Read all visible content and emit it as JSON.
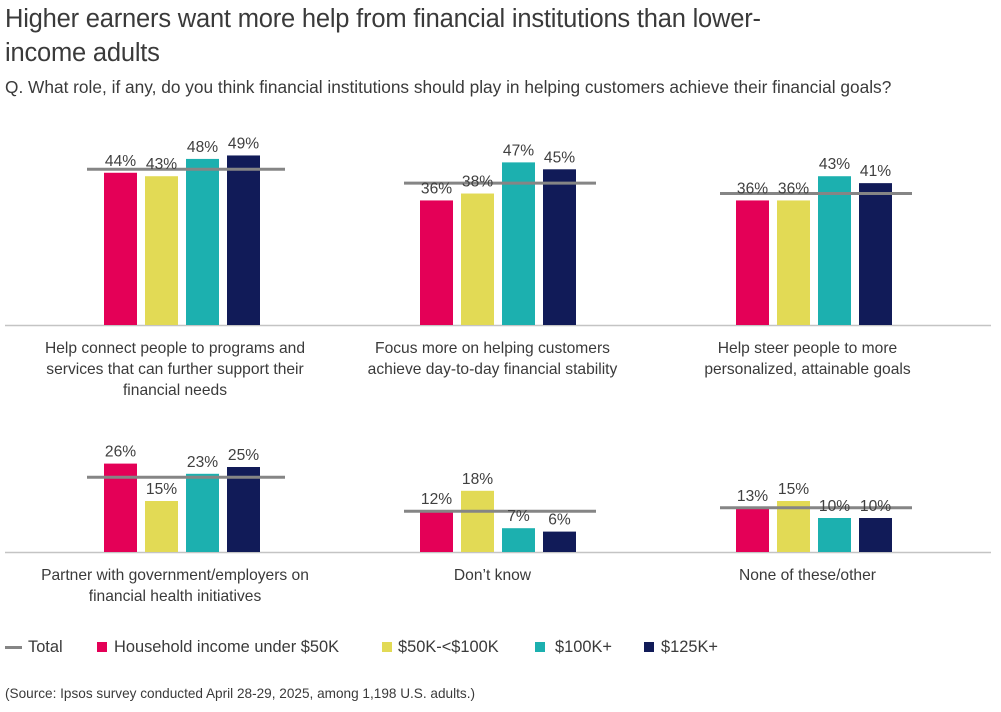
{
  "header": {
    "title": "Higher earners want more help from financial institutions than lower-income adults",
    "title_line1": "Higher earners want more help from financial institutions than lower-",
    "title_line2": "income adults",
    "subtitle": "Q. What role, if any, do you think financial institutions should play in helping customers achieve their financial goals?"
  },
  "legend": {
    "total": "Total",
    "items": [
      {
        "label": "Household income under $50K",
        "color": "#E40057"
      },
      {
        "label": "$50K-<$100K",
        "color": "#E2DA55"
      },
      {
        "label": "$100K+",
        "color": "#1CB0AF"
      },
      {
        "label": "$125K+",
        "color": "#111B58"
      }
    ],
    "total_color": "#858585"
  },
  "source": "(Source: Ipsos survey conducted April 28-29, 2025, among 1,198 U.S. adults.)",
  "chart_data": {
    "type": "bar",
    "title": "Higher earners want more help from financial institutions than lower-income adults",
    "subtitle": "Q. What role, if any, do you think financial institutions should play in helping customers achieve their financial goals?",
    "xlabel": "",
    "ylabel": "",
    "ylim": [
      0,
      55
    ],
    "grid": false,
    "legend_position": "bottom",
    "value_format": "percent",
    "series_names": [
      "Household income under $50K",
      "$50K-<$100K",
      "$100K+",
      "$125K+"
    ],
    "series_colors": [
      "#E40057",
      "#E2DA55",
      "#1CB0AF",
      "#111B58"
    ],
    "total_name": "Total",
    "panels": [
      {
        "category": "Help connect people to programs and services that can further support their financial needs",
        "category_lines": [
          "Help connect people to programs and",
          "services that can further support their",
          "financial needs"
        ],
        "values": [
          44,
          43,
          48,
          49
        ],
        "labels": [
          "44%",
          "43%",
          "48%",
          "49%"
        ],
        "total": 45
      },
      {
        "category": "Focus more on helping customers achieve day-to-day financial stability",
        "category_lines": [
          "Focus more on helping customers",
          "achieve day-to-day financial stability"
        ],
        "values": [
          36,
          38,
          47,
          45
        ],
        "labels": [
          "36%",
          "38%",
          "47%",
          "45%"
        ],
        "total": 41
      },
      {
        "category": "Help steer people to more personalized, attainable goals",
        "category_lines": [
          "Help steer people to more",
          "personalized, attainable goals"
        ],
        "values": [
          36,
          36,
          43,
          41
        ],
        "labels": [
          "36%",
          "36%",
          "43%",
          "41%"
        ],
        "total": 38
      },
      {
        "category": "Partner with government/employers on financial health initiatives",
        "category_lines": [
          "Partner with government/employers on",
          "financial health initiatives"
        ],
        "values": [
          26,
          15,
          23,
          25
        ],
        "labels": [
          "26%",
          "15%",
          "23%",
          "25%"
        ],
        "total": 22
      },
      {
        "category": "Don’t know",
        "category_lines": [
          "Don’t know"
        ],
        "values": [
          12,
          18,
          7,
          6
        ],
        "labels": [
          "12%",
          "18%",
          "7%",
          "6%"
        ],
        "total": 12
      },
      {
        "category": "None of these/other",
        "category_lines": [
          "None of these/other"
        ],
        "values": [
          13,
          15,
          10,
          10
        ],
        "labels": [
          "13%",
          "15%",
          "10%",
          "10%"
        ],
        "total": 13
      }
    ]
  }
}
